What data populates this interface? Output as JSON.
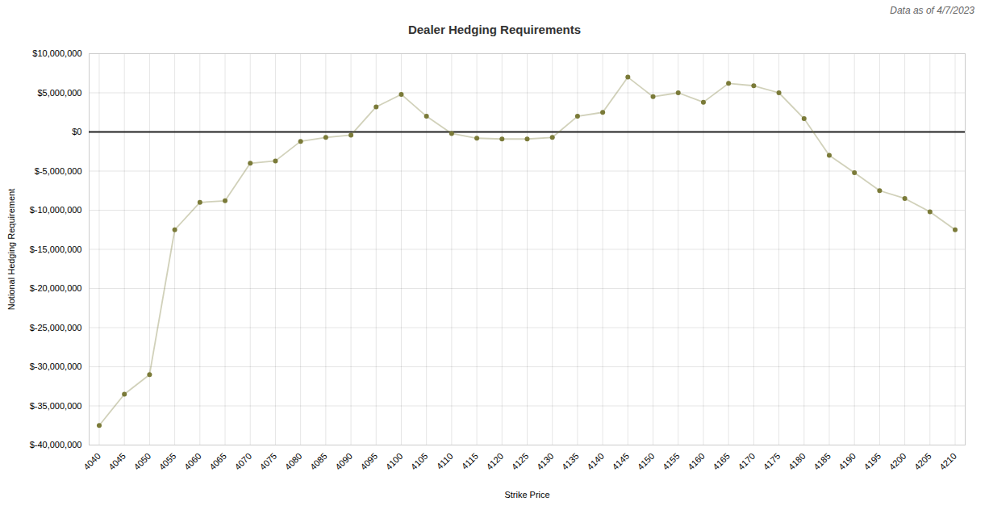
{
  "chart_data": {
    "type": "line",
    "title": "Dealer Hedging Requirements",
    "annotation": "Data as of 4/7/2023",
    "xlabel": "Strike Price",
    "ylabel": "Notional Hedging Requirement",
    "x": [
      4040,
      4045,
      4050,
      4055,
      4060,
      4065,
      4070,
      4075,
      4080,
      4085,
      4090,
      4095,
      4100,
      4105,
      4110,
      4115,
      4120,
      4125,
      4130,
      4135,
      4140,
      4145,
      4150,
      4155,
      4160,
      4165,
      4170,
      4175,
      4180,
      4185,
      4190,
      4195,
      4200,
      4205,
      4210
    ],
    "values": [
      -37500000,
      -33500000,
      -31000000,
      -12500000,
      -9000000,
      -8800000,
      -4000000,
      -3700000,
      -1200000,
      -700000,
      -400000,
      3200000,
      4800000,
      2000000,
      -200000,
      -800000,
      -900000,
      -900000,
      -700000,
      2000000,
      2500000,
      7000000,
      4500000,
      5000000,
      3800000,
      6200000,
      5900000,
      5000000,
      1700000,
      -3000000,
      -5200000,
      -7500000,
      -8500000,
      -10200000,
      -12500000
    ],
    "color": "#7a7a38",
    "marker": "circle",
    "xlim": [
      4038,
      4212
    ],
    "xticks": [
      4040,
      4045,
      4050,
      4055,
      4060,
      4065,
      4070,
      4075,
      4080,
      4085,
      4090,
      4095,
      4100,
      4105,
      4110,
      4115,
      4120,
      4125,
      4130,
      4135,
      4140,
      4145,
      4150,
      4155,
      4160,
      4165,
      4170,
      4175,
      4180,
      4185,
      4190,
      4195,
      4200,
      4205,
      4210
    ],
    "ylim": [
      -40000000,
      10000000
    ],
    "yticks": [
      {
        "value": -40000000,
        "label": "$-40,000,000"
      },
      {
        "value": -35000000,
        "label": "$-35,000,000"
      },
      {
        "value": -30000000,
        "label": "$-30,000,000"
      },
      {
        "value": -25000000,
        "label": "$-25,000,000"
      },
      {
        "value": -20000000,
        "label": "$-20,000,000"
      },
      {
        "value": -15000000,
        "label": "$-15,000,000"
      },
      {
        "value": -10000000,
        "label": "$-10,000,000"
      },
      {
        "value": -5000000,
        "label": "$-5,000,000"
      },
      {
        "value": 0,
        "label": "$0"
      },
      {
        "value": 5000000,
        "label": "$5,000,000"
      },
      {
        "value": 10000000,
        "label": "$10,000,000"
      }
    ],
    "grid": true
  }
}
